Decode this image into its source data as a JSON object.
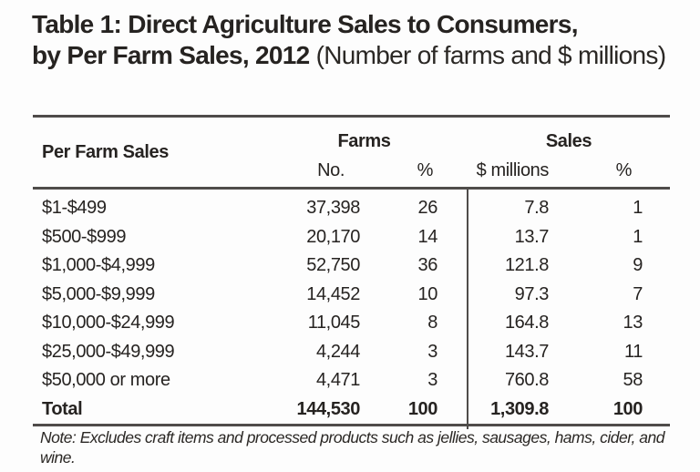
{
  "title": {
    "line1": "Table 1: Direct Agriculture Sales to Consumers,",
    "line2_bold": "by Per Farm Sales, 2012",
    "line2_paren": " (Number of farms and $ millions)"
  },
  "table": {
    "stub_header": "Per Farm Sales",
    "group_farms": "Farms",
    "group_sales": "Sales",
    "subheaders": {
      "farms_no": "No.",
      "farms_pct": "%",
      "sales_millions": "$ millions",
      "sales_pct": "%"
    },
    "rows": [
      {
        "label": "$1-$499",
        "farms_no": "37,398",
        "farms_pct": "26",
        "sales_m": "7.8",
        "sales_pct": "1"
      },
      {
        "label": "$500-$999",
        "farms_no": "20,170",
        "farms_pct": "14",
        "sales_m": "13.7",
        "sales_pct": "1"
      },
      {
        "label": "$1,000-$4,999",
        "farms_no": "52,750",
        "farms_pct": "36",
        "sales_m": "121.8",
        "sales_pct": "9"
      },
      {
        "label": "$5,000-$9,999",
        "farms_no": "14,452",
        "farms_pct": "10",
        "sales_m": "97.3",
        "sales_pct": "7"
      },
      {
        "label": "$10,000-$24,999",
        "farms_no": "11,045",
        "farms_pct": "8",
        "sales_m": "164.8",
        "sales_pct": "13"
      },
      {
        "label": "$25,000-$49,999",
        "farms_no": "4,244",
        "farms_pct": "3",
        "sales_m": "143.7",
        "sales_pct": "11"
      },
      {
        "label": "$50,000 or more",
        "farms_no": "4,471",
        "farms_pct": "3",
        "sales_m": "760.8",
        "sales_pct": "58"
      }
    ],
    "total": {
      "label": "Total",
      "farms_no": "144,530",
      "farms_pct": "100",
      "sales_m": "1,309.8",
      "sales_pct": "100"
    }
  },
  "note": "Note: Excludes craft items and processed products such as jellies, sausages, hams, cider, and wine.",
  "colors": {
    "text": "#262321",
    "rule": "#4f4c4a",
    "background": "#fdfdfd"
  }
}
